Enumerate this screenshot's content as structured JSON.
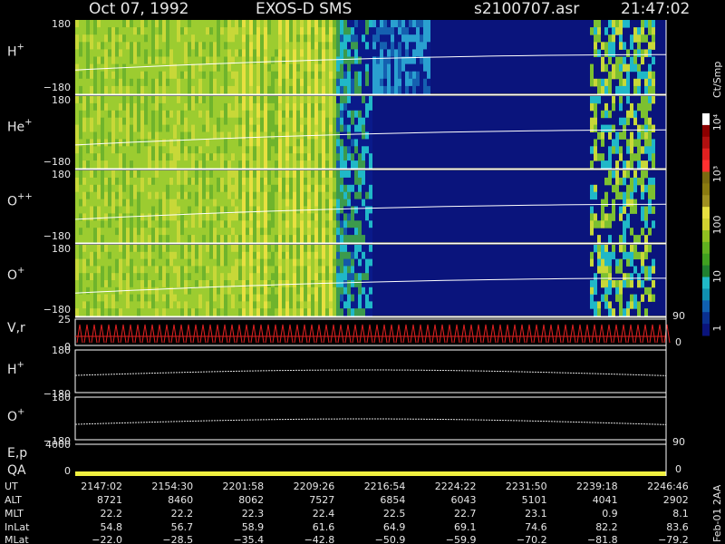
{
  "header": {
    "date": "Oct 07, 1992",
    "instrument": "EXOS-D SMS",
    "file": "s2100707.asr",
    "time": "21:47:02"
  },
  "spectrograms": [
    {
      "ion": "H",
      "charge": "+",
      "top": "180",
      "bottom": "−180"
    },
    {
      "ion": "He",
      "charge": "+",
      "top": "180",
      "bottom": "−180"
    },
    {
      "ion": "O",
      "charge": "++",
      "top": "180",
      "bottom": "−180"
    },
    {
      "ion": "O",
      "charge": "+",
      "top": "180",
      "bottom": "−180"
    }
  ],
  "velocity": {
    "label": "V,r",
    "top": "25",
    "bottom": "0",
    "right_top": "90",
    "right_bottom": "0"
  },
  "angle_panels": [
    {
      "ion": "H",
      "charge": "+",
      "top": "180",
      "bottom": "−180"
    },
    {
      "ion": "O",
      "charge": "+",
      "top": "180",
      "bottom": "−180"
    }
  ],
  "energy": {
    "label": "E,p",
    "top": "4000",
    "bottom": "0",
    "right_top": "90",
    "right_bottom": "0"
  },
  "qa": {
    "label": "QA"
  },
  "colorbar": {
    "unit": "Ct/Smp",
    "labels": [
      "10⁴",
      "10³",
      "100",
      "10",
      "1"
    ]
  },
  "table": {
    "rows": [
      [
        "UT",
        "2147:02",
        "2154:30",
        "2201:58",
        "2209:26",
        "2216:54",
        "2224:22",
        "2231:50",
        "2239:18",
        "2246:46"
      ],
      [
        "ALT",
        "8721",
        "8460",
        "8062",
        "7527",
        "6854",
        "6043",
        "5101",
        "4041",
        "2902"
      ],
      [
        "MLT",
        "22.2",
        "22.2",
        "22.3",
        "22.4",
        "22.5",
        "22.7",
        "23.1",
        "0.9",
        "8.1"
      ],
      [
        "InLat",
        "54.8",
        "56.7",
        "58.9",
        "61.6",
        "64.9",
        "69.1",
        "74.6",
        "82.2",
        "83.6"
      ],
      [
        "MLat",
        "−22.0",
        "−28.5",
        "−35.4",
        "−42.8",
        "−50.9",
        "−59.9",
        "−70.2",
        "−81.8",
        "−79.2"
      ]
    ]
  },
  "footer": "Feb-01 2AA"
}
